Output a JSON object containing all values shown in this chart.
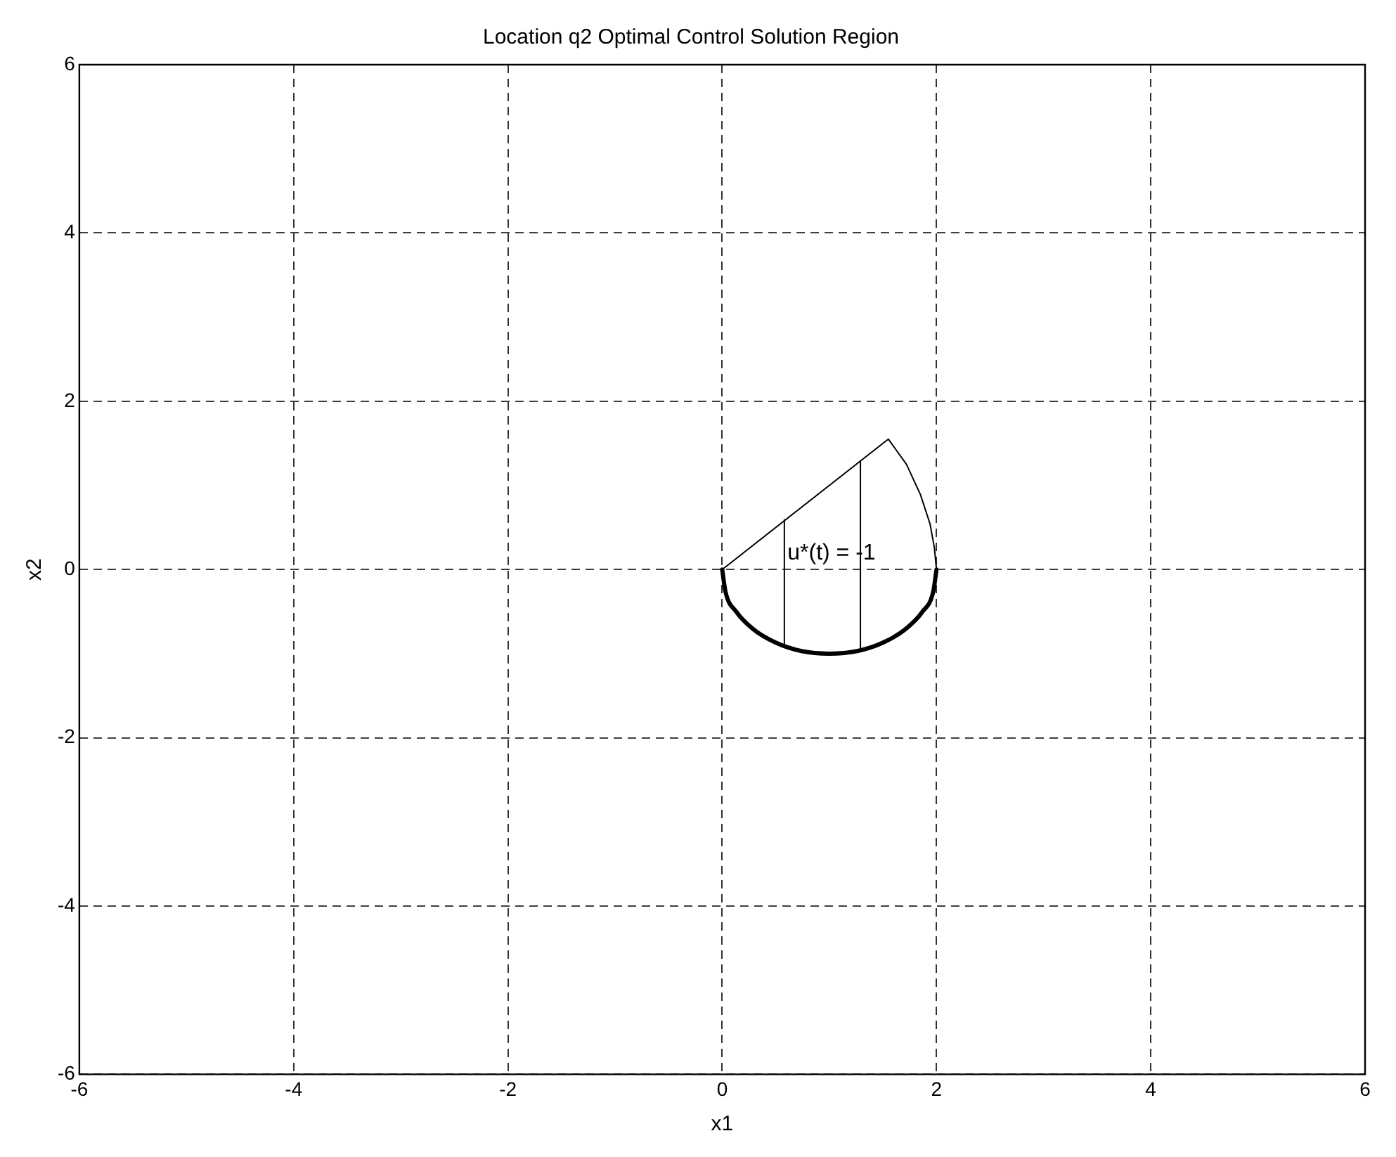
{
  "chart_data": {
    "type": "line",
    "title": "Location q2 Optimal Control Solution Region",
    "xlabel": "x1",
    "ylabel": "x2",
    "xlim": [
      -6,
      6
    ],
    "xticks": [
      -6,
      -4,
      -2,
      0,
      2,
      4,
      6
    ],
    "ylim": [
      -6,
      6
    ],
    "yticks": [
      -6,
      -4,
      -2,
      0,
      2,
      4,
      6
    ],
    "grid": true,
    "legend": false,
    "marker": "none",
    "series": [
      {
        "color": "#000000",
        "x": [
          0,
          0.03,
          0.13,
          0.29,
          0.5,
          0.74,
          1,
          1.26,
          1.5,
          1.71,
          1.87,
          1.97,
          2
        ],
        "values": [
          0,
          -0.26,
          -0.5,
          -0.71,
          -0.87,
          -0.97,
          -1,
          -0.97,
          -0.87,
          -0.71,
          -0.5,
          -0.26,
          0
        ]
      },
      {
        "color": "#000000",
        "x": [
          0,
          1.55,
          1.72,
          1.85,
          1.94,
          1.98,
          2
        ],
        "values": [
          0,
          1.55,
          1.25,
          0.89,
          0.54,
          0.26,
          0
        ]
      },
      {
        "color": "#000000",
        "x": [
          0.58,
          0.58
        ],
        "values": [
          0.59,
          -0.91
        ]
      },
      {
        "color": "#000000",
        "x": [
          1.29,
          1.29
        ],
        "values": [
          1.28,
          -0.96
        ]
      }
    ],
    "annotations": [
      "u*(t) = -1"
    ]
  }
}
